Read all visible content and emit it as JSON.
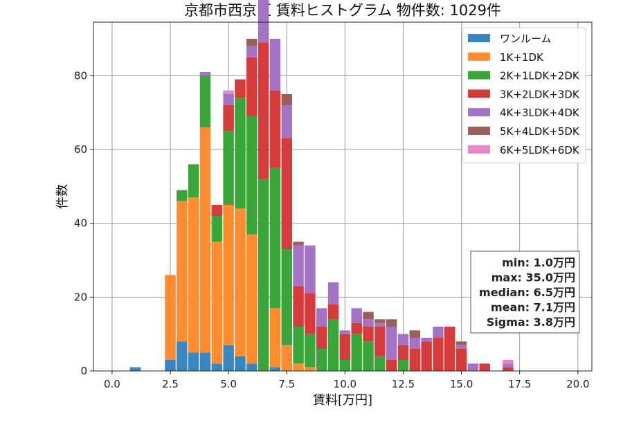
{
  "chart_data": {
    "type": "bar",
    "stacked": true,
    "title": "京都市西京区 賃料ヒストグラム 物件数: 1029件",
    "xlabel": "賃料[万円]",
    "ylabel": "件数",
    "xlim": [
      -0.8,
      20.6
    ],
    "ylim": [
      0,
      94.5
    ],
    "xticks": [
      0.0,
      2.5,
      5.0,
      7.5,
      10.0,
      12.5,
      15.0,
      17.5,
      20.0
    ],
    "xtick_labels": [
      "0.0",
      "2.5",
      "5.0",
      "7.5",
      "10.0",
      "12.5",
      "15.0",
      "17.5",
      "20.0"
    ],
    "yticks": [
      0,
      20,
      40,
      60,
      80
    ],
    "ytick_labels": [
      "0",
      "20",
      "40",
      "60",
      "80"
    ],
    "grid": true,
    "legend_position": "top-right",
    "bin_width": 0.5,
    "x": [
      1.0,
      2.5,
      3.0,
      3.5,
      4.0,
      4.5,
      5.0,
      5.5,
      6.0,
      6.5,
      7.0,
      7.5,
      8.0,
      8.5,
      9.0,
      9.5,
      10.0,
      10.5,
      11.0,
      11.5,
      12.0,
      12.5,
      13.0,
      13.5,
      14.0,
      14.5,
      15.0,
      15.5,
      16.0,
      17.0
    ],
    "series": [
      {
        "name": "ワンルーム",
        "color": "#3a86c0",
        "values": [
          1,
          3,
          8,
          5,
          5,
          2,
          7,
          4,
          2,
          0,
          1,
          0,
          0,
          0,
          0,
          0,
          0,
          0,
          0,
          0,
          0,
          0,
          0,
          0,
          0,
          0,
          0,
          0,
          0,
          0
        ]
      },
      {
        "name": "1K+1DK",
        "color": "#ff8c2e",
        "values": [
          0,
          23,
          38,
          42,
          61,
          33,
          38,
          40,
          35,
          0,
          16,
          7,
          2,
          1,
          0,
          0,
          0,
          0,
          0,
          0,
          0,
          0,
          0,
          0,
          0,
          0,
          0,
          0,
          0,
          0
        ]
      },
      {
        "name": "2K+1LDK+2DK",
        "color": "#3aa63a",
        "values": [
          0,
          0,
          3,
          9,
          14,
          7,
          20,
          30,
          32,
          52,
          38,
          26,
          10,
          9,
          6,
          14,
          3,
          10,
          8,
          4,
          0,
          3,
          0,
          0,
          0,
          0,
          0,
          0,
          0,
          0
        ]
      },
      {
        "name": "3K+2LDK+3DK",
        "color": "#d63b3b",
        "values": [
          0,
          0,
          0,
          0,
          0,
          3,
          7,
          5,
          16,
          37,
          21,
          30,
          11,
          11,
          6,
          4,
          7,
          3,
          4,
          8,
          3,
          4,
          6,
          8,
          9,
          12,
          6,
          0,
          2,
          1
        ]
      },
      {
        "name": "4K+3LDK+4DK",
        "color": "#a374c4",
        "values": [
          0,
          0,
          0,
          0,
          1,
          0,
          3,
          0,
          3,
          12,
          14,
          9,
          11,
          13,
          5,
          6,
          1,
          4,
          2,
          1,
          9,
          3,
          3,
          1,
          3,
          0,
          1,
          2,
          0,
          1
        ]
      },
      {
        "name": "5K+4LDK+5DK",
        "color": "#986058",
        "values": [
          0,
          0,
          0,
          0,
          0,
          0,
          0,
          0,
          2,
          0,
          0,
          3,
          1,
          0,
          0,
          0,
          0,
          0,
          2,
          1,
          2,
          0,
          2,
          0,
          0,
          0,
          1,
          0,
          0,
          0
        ]
      },
      {
        "name": "6K+5LDK+6DK",
        "color": "#e886c8",
        "values": [
          0,
          0,
          0,
          0,
          0,
          0,
          1,
          0,
          0,
          0,
          0,
          0,
          0,
          0,
          0,
          0,
          0,
          0,
          0,
          0,
          0,
          0,
          0,
          0,
          0,
          0,
          0,
          0,
          0,
          1
        ]
      }
    ],
    "annotation_lines": [
      "min: 1.0万円",
      "max: 35.0万円",
      "median: 6.5万円",
      "mean: 7.1万円",
      "Sigma: 3.8万円"
    ]
  }
}
